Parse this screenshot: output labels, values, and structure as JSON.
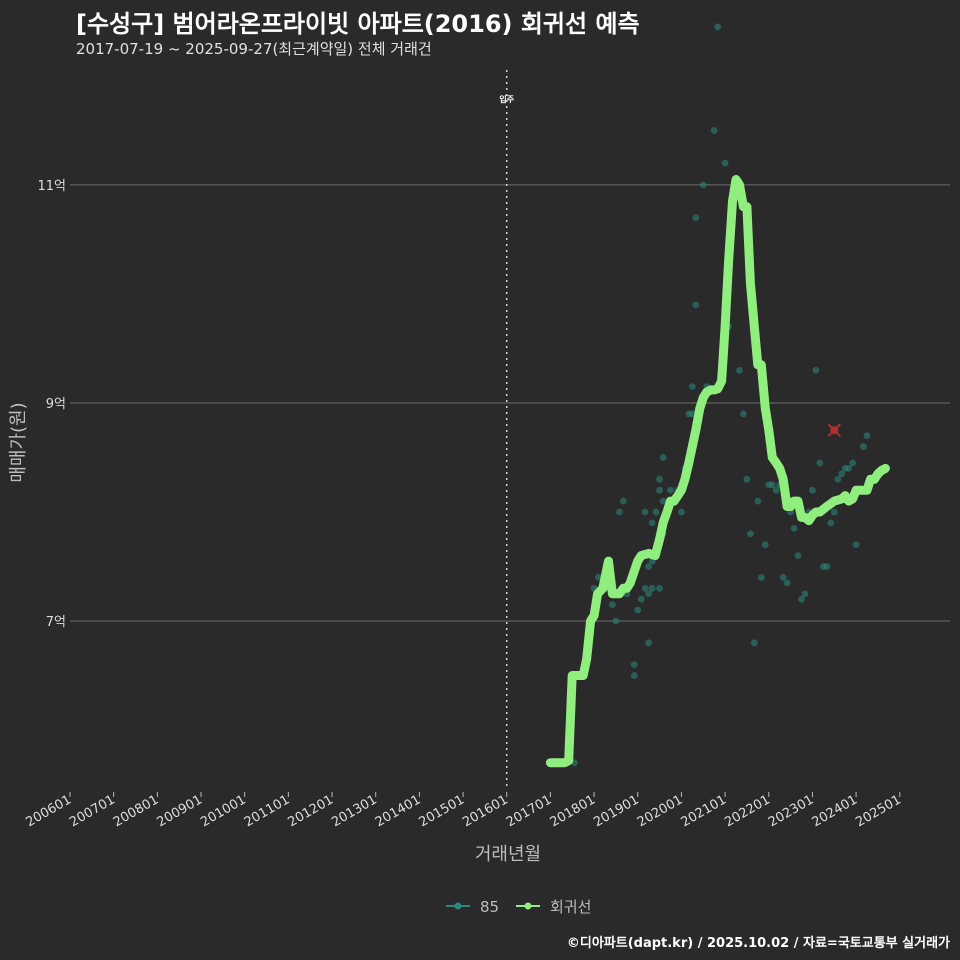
{
  "title": "[수성구] 범어라온프라이빗 아파트(2016) 회귀선 예측",
  "subtitle": "2017-07-19 ~ 2025-09-27(최근계약일) 전체 거래건",
  "footer": "©디아파트(dapt.kr) / 2025.10.02 / 자료=국토교통부 실거래가",
  "colors": {
    "background": "#2a2a2a",
    "grid": "#6e6e6e",
    "line": "#90ee7e",
    "points": "#2a8a80",
    "marker": "#b03030"
  },
  "chart_data": {
    "type": "line",
    "title": "[수성구] 범어라온프라이빗 아파트(2016) 회귀선 예측",
    "xlabel": "거래년월",
    "ylabel": "매매가(원)",
    "x_ticks": [
      "200601",
      "200701",
      "200801",
      "200901",
      "201001",
      "201101",
      "201201",
      "201301",
      "201401",
      "201501",
      "201601",
      "201701",
      "201801",
      "201901",
      "202001",
      "202101",
      "202201",
      "202301",
      "202401",
      "202501"
    ],
    "xlim": [
      2006.0,
      2026.15
    ],
    "ylim": [
      5.45,
      12.1
    ],
    "y_ticks": [
      {
        "value": 7,
        "label": "7억"
      },
      {
        "value": 9,
        "label": "9억"
      },
      {
        "value": 11,
        "label": "11억"
      }
    ],
    "vline": {
      "x": 2016.0,
      "label": "입주"
    },
    "legend": [
      {
        "name": "85",
        "color": "#2a8a80"
      },
      {
        "name": "회귀선",
        "color": "#90ee7e"
      }
    ],
    "series": [
      {
        "name": "회귀선",
        "points": [
          [
            2017.0,
            5.7
          ],
          [
            2017.33,
            5.7
          ],
          [
            2017.42,
            5.72
          ],
          [
            2017.5,
            6.5
          ],
          [
            2017.75,
            6.5
          ],
          [
            2017.83,
            6.65
          ],
          [
            2017.92,
            7.0
          ],
          [
            2018.0,
            7.05
          ],
          [
            2018.08,
            7.25
          ],
          [
            2018.2,
            7.3
          ],
          [
            2018.33,
            7.55
          ],
          [
            2018.42,
            7.25
          ],
          [
            2018.58,
            7.25
          ],
          [
            2018.67,
            7.3
          ],
          [
            2018.75,
            7.3
          ],
          [
            2018.83,
            7.35
          ],
          [
            2019.0,
            7.55
          ],
          [
            2019.08,
            7.6
          ],
          [
            2019.25,
            7.62
          ],
          [
            2019.4,
            7.6
          ],
          [
            2019.5,
            7.75
          ],
          [
            2019.58,
            7.9
          ],
          [
            2019.67,
            8.0
          ],
          [
            2019.75,
            8.1
          ],
          [
            2019.83,
            8.1
          ],
          [
            2019.92,
            8.15
          ],
          [
            2020.0,
            8.2
          ],
          [
            2020.08,
            8.3
          ],
          [
            2020.17,
            8.45
          ],
          [
            2020.25,
            8.6
          ],
          [
            2020.33,
            8.75
          ],
          [
            2020.42,
            8.95
          ],
          [
            2020.5,
            9.05
          ],
          [
            2020.58,
            9.1
          ],
          [
            2020.67,
            9.12
          ],
          [
            2020.75,
            9.12
          ],
          [
            2020.83,
            9.13
          ],
          [
            2020.92,
            9.2
          ],
          [
            2021.0,
            9.7
          ],
          [
            2021.08,
            10.3
          ],
          [
            2021.17,
            10.85
          ],
          [
            2021.25,
            11.05
          ],
          [
            2021.33,
            11.0
          ],
          [
            2021.42,
            10.8
          ],
          [
            2021.5,
            10.8
          ],
          [
            2021.58,
            10.1
          ],
          [
            2021.67,
            9.7
          ],
          [
            2021.75,
            9.35
          ],
          [
            2021.83,
            9.35
          ],
          [
            2021.92,
            8.95
          ],
          [
            2022.0,
            8.75
          ],
          [
            2022.08,
            8.5
          ],
          [
            2022.17,
            8.45
          ],
          [
            2022.25,
            8.4
          ],
          [
            2022.33,
            8.3
          ],
          [
            2022.42,
            8.05
          ],
          [
            2022.5,
            8.05
          ],
          [
            2022.58,
            8.1
          ],
          [
            2022.67,
            8.1
          ],
          [
            2022.75,
            7.95
          ],
          [
            2022.83,
            7.95
          ],
          [
            2022.92,
            7.92
          ],
          [
            2023.0,
            7.97
          ],
          [
            2023.08,
            8.0
          ],
          [
            2023.17,
            8.0
          ],
          [
            2023.33,
            8.05
          ],
          [
            2023.5,
            8.1
          ],
          [
            2023.67,
            8.12
          ],
          [
            2023.75,
            8.15
          ],
          [
            2023.83,
            8.1
          ],
          [
            2023.92,
            8.12
          ],
          [
            2024.0,
            8.2
          ],
          [
            2024.08,
            8.2
          ],
          [
            2024.17,
            8.2
          ],
          [
            2024.25,
            8.2
          ],
          [
            2024.33,
            8.3
          ],
          [
            2024.42,
            8.3
          ],
          [
            2024.5,
            8.35
          ],
          [
            2024.58,
            8.38
          ],
          [
            2024.67,
            8.4
          ]
        ]
      },
      {
        "name": "85",
        "points": [
          [
            2017.55,
            5.7
          ],
          [
            2018.0,
            7.3
          ],
          [
            2018.1,
            7.4
          ],
          [
            2018.25,
            7.3
          ],
          [
            2018.42,
            7.15
          ],
          [
            2018.5,
            7.0
          ],
          [
            2018.58,
            8.0
          ],
          [
            2018.67,
            8.1
          ],
          [
            2018.75,
            7.25
          ],
          [
            2018.83,
            7.4
          ],
          [
            2018.92,
            6.6
          ],
          [
            2018.92,
            6.5
          ],
          [
            2019.0,
            7.1
          ],
          [
            2019.08,
            7.2
          ],
          [
            2019.17,
            7.3
          ],
          [
            2019.25,
            7.25
          ],
          [
            2019.25,
            7.5
          ],
          [
            2019.33,
            7.55
          ],
          [
            2019.17,
            8.0
          ],
          [
            2019.25,
            6.8
          ],
          [
            2019.33,
            7.9
          ],
          [
            2019.33,
            7.3
          ],
          [
            2019.42,
            7.6
          ],
          [
            2019.42,
            8.0
          ],
          [
            2019.5,
            8.2
          ],
          [
            2019.5,
            8.3
          ],
          [
            2019.58,
            8.1
          ],
          [
            2019.58,
            7.8
          ],
          [
            2019.5,
            7.7
          ],
          [
            2019.58,
            8.5
          ],
          [
            2019.5,
            7.3
          ],
          [
            2019.67,
            8.0
          ],
          [
            2019.75,
            8.2
          ],
          [
            2019.83,
            8.1
          ],
          [
            2019.92,
            8.2
          ],
          [
            2020.0,
            8.0
          ],
          [
            2020.0,
            8.2
          ],
          [
            2020.08,
            8.4
          ],
          [
            2020.17,
            8.5
          ],
          [
            2020.17,
            8.9
          ],
          [
            2020.25,
            9.15
          ],
          [
            2020.25,
            8.9
          ],
          [
            2020.33,
            9.9
          ],
          [
            2020.33,
            10.7
          ],
          [
            2020.5,
            11.0
          ],
          [
            2020.58,
            9.15
          ],
          [
            2020.75,
            11.5
          ],
          [
            2020.83,
            12.45
          ],
          [
            2021.0,
            11.2
          ],
          [
            2021.08,
            9.7
          ],
          [
            2021.25,
            11.0
          ],
          [
            2021.33,
            9.3
          ],
          [
            2021.42,
            8.9
          ],
          [
            2021.5,
            8.3
          ],
          [
            2021.58,
            7.8
          ],
          [
            2021.67,
            6.8
          ],
          [
            2021.75,
            8.1
          ],
          [
            2021.83,
            7.4
          ],
          [
            2021.92,
            7.7
          ],
          [
            2022.0,
            8.25
          ],
          [
            2022.08,
            8.25
          ],
          [
            2022.17,
            8.2
          ],
          [
            2022.25,
            8.25
          ],
          [
            2022.33,
            7.4
          ],
          [
            2022.42,
            7.35
          ],
          [
            2022.5,
            8.0
          ],
          [
            2022.58,
            7.85
          ],
          [
            2022.67,
            7.6
          ],
          [
            2022.75,
            7.2
          ],
          [
            2022.83,
            7.25
          ],
          [
            2022.92,
            8.0
          ],
          [
            2023.0,
            8.2
          ],
          [
            2023.08,
            9.3
          ],
          [
            2023.17,
            8.45
          ],
          [
            2023.25,
            7.5
          ],
          [
            2023.33,
            7.5
          ],
          [
            2023.42,
            7.9
          ],
          [
            2023.5,
            8.0
          ],
          [
            2023.58,
            8.3
          ],
          [
            2023.67,
            8.35
          ],
          [
            2023.75,
            8.4
          ],
          [
            2023.83,
            8.4
          ],
          [
            2023.92,
            8.45
          ],
          [
            2024.0,
            7.7
          ],
          [
            2024.17,
            8.6
          ],
          [
            2024.25,
            8.7
          ]
        ]
      }
    ],
    "highlight": {
      "x": 2023.5,
      "y": 8.75,
      "shape": "x"
    }
  }
}
